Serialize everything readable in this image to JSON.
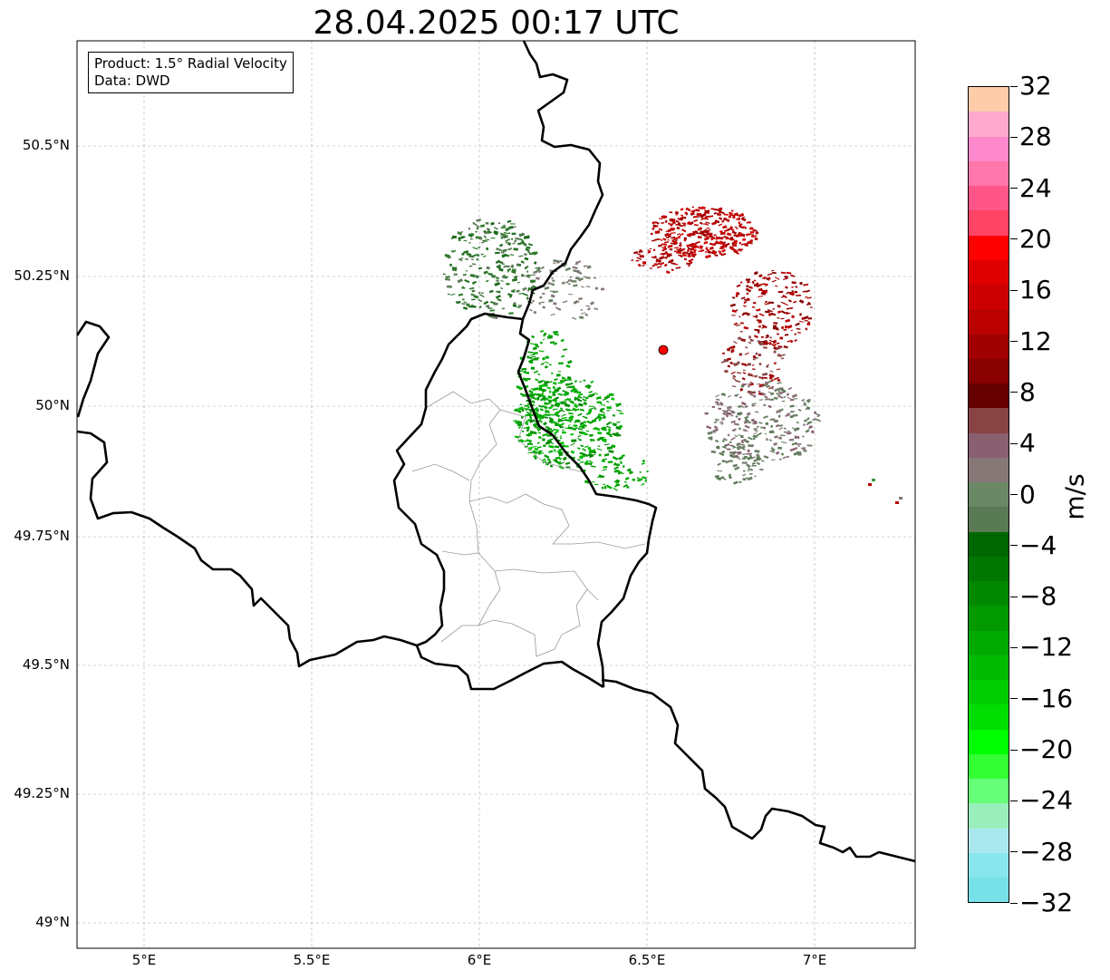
{
  "title": "28.04.2025 00:17 UTC",
  "info": {
    "product": "Product: 1.5° Radial Velocity",
    "source": "Data: DWD"
  },
  "axes": {
    "lat_labels": [
      "50.5°N",
      "50.25°N",
      "50°N",
      "49.75°N",
      "49.5°N",
      "49.25°N",
      "49°N"
    ],
    "lon_labels": [
      "5°E",
      "5.5°E",
      "6°E",
      "6.5°E",
      "7°E"
    ]
  },
  "colorbar": {
    "unit": "m/s",
    "tick_labels": [
      "32",
      "28",
      "24",
      "20",
      "16",
      "12",
      "8",
      "4",
      "0",
      "−4",
      "−8",
      "−12",
      "−16",
      "−20",
      "−24",
      "−28",
      "−32"
    ],
    "colors_top_to_bottom": [
      "#ffccaa",
      "#ffaacc",
      "#ff88cc",
      "#ff77aa",
      "#ff5588",
      "#ff4466",
      "#ff0000",
      "#e00000",
      "#cc0000",
      "#bb0000",
      "#a00000",
      "#880000",
      "#660000",
      "#884444",
      "#886070",
      "#887777",
      "#6a8866",
      "#5a7a55",
      "#006600",
      "#007700",
      "#008800",
      "#009900",
      "#00aa00",
      "#00bb00",
      "#00cc00",
      "#00dd00",
      "#00ff00",
      "#33ff33",
      "#66ff77",
      "#99eebb",
      "#aae8ee",
      "#88e6ee",
      "#77e0e8"
    ]
  },
  "radar_site": {
    "color": "#ff0000"
  },
  "colors": {
    "inbound_green": "#009900",
    "outbound_red": "#bb0000",
    "neutral_grey": "#6a7f66"
  }
}
